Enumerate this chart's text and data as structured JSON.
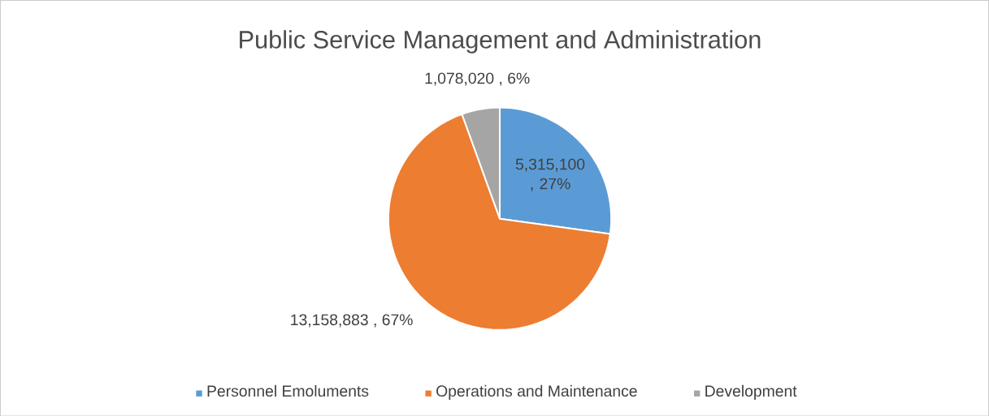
{
  "chart_data": {
    "type": "pie",
    "title": "Public Service Management and Administration",
    "categories": [
      "Personnel Emoluments",
      "Operations and Maintenance",
      "Development"
    ],
    "values": [
      5315100,
      13158883,
      1078020
    ],
    "value_labels": [
      "5,315,100 , 27%",
      "13,158,883 , 67%",
      "1,078,020 , 6%"
    ],
    "colors": [
      "#5b9bd5",
      "#ed7d31",
      "#a5a5a5"
    ],
    "legend": "bottom"
  }
}
